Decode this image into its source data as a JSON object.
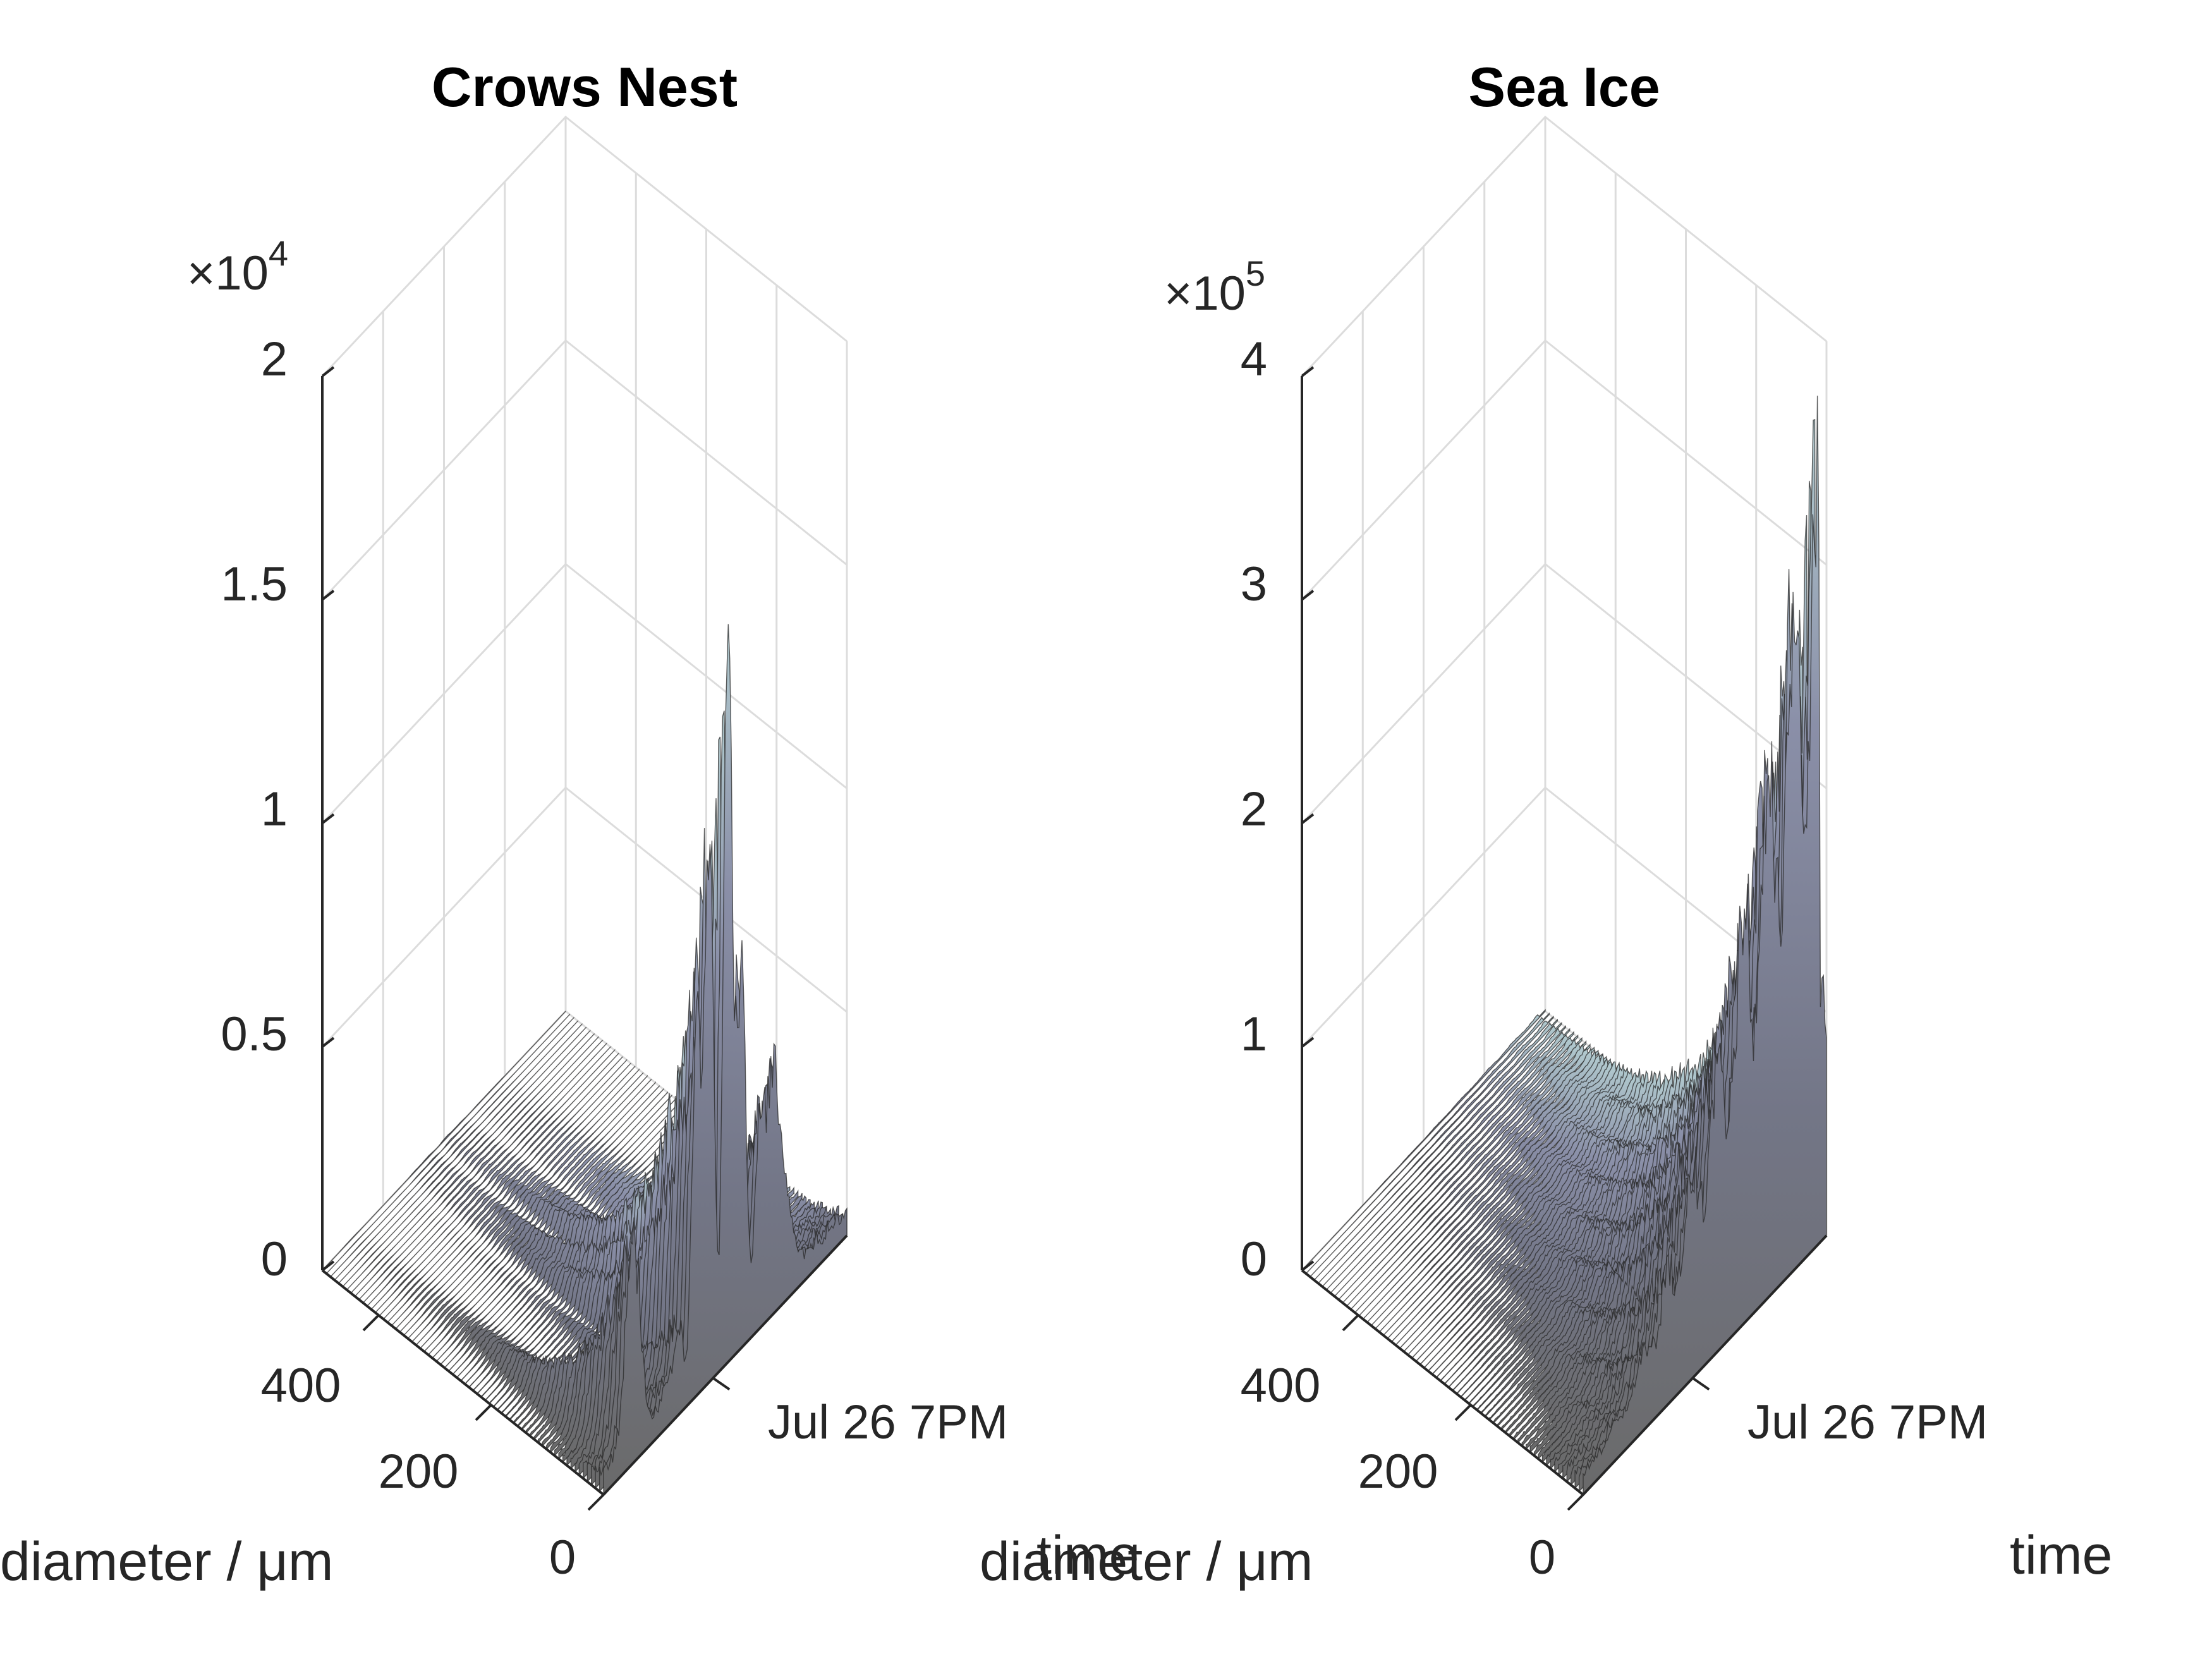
{
  "colors": {
    "background": "#ffffff",
    "axis": "#262626",
    "grid": "#dcdcdc",
    "surface_low": "#6e6e6e",
    "surface_mid": "#7e8196",
    "surface_high": "#a9c3c8",
    "mesh_line": "#2a2a2a"
  },
  "chart_data": [
    {
      "type": "surface",
      "title": "Crows Nest",
      "xlabel": "diameter / μm",
      "ylabel": "time",
      "zlabel": "",
      "exponent_base": "×10",
      "exponent_power": "4",
      "x_ticks": [
        "0",
        "200",
        "400"
      ],
      "y_ticks": [
        "Jul 26  7PM"
      ],
      "z_ticks": [
        "0",
        "0.5",
        "1",
        "1.5",
        "2"
      ],
      "x_range": [
        0,
        500
      ],
      "y_range": [
        0,
        1
      ],
      "z_range": [
        0,
        2
      ],
      "z_scale": 10000,
      "peak_z": 1.65,
      "grid": true,
      "colormap": "bone"
    },
    {
      "type": "surface",
      "title": "Sea Ice",
      "xlabel": "diameter / μm",
      "ylabel": "time",
      "zlabel": "",
      "exponent_base": "×10",
      "exponent_power": "5",
      "x_ticks": [
        "0",
        "200",
        "400"
      ],
      "y_ticks": [
        "Jul 26  7PM"
      ],
      "z_ticks": [
        "0",
        "1",
        "2",
        "3",
        "4"
      ],
      "x_range": [
        0,
        500
      ],
      "y_range": [
        0,
        1
      ],
      "z_range": [
        0,
        4
      ],
      "z_scale": 100000,
      "peak_z": 3.8,
      "grid": true,
      "colormap": "bone"
    }
  ]
}
